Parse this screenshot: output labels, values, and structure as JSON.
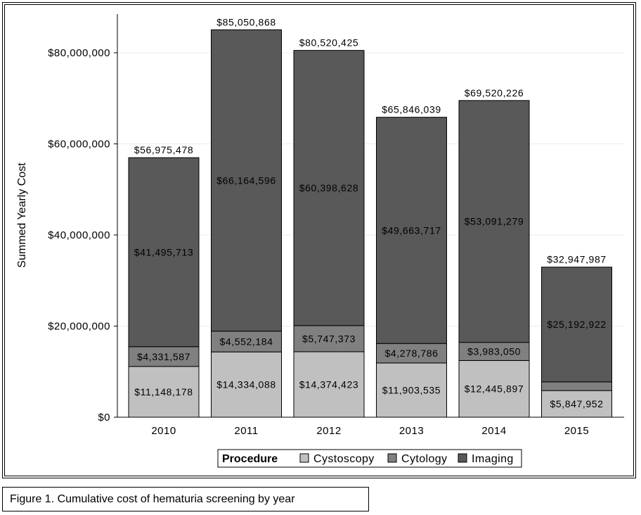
{
  "caption": "Figure 1. Cumulative cost of hematuria screening by year",
  "chart_data": {
    "type": "bar",
    "stacked": true,
    "title": "",
    "xlabel": "",
    "ylabel": "Summed Yearly Cost",
    "ylim": [
      0,
      86000000
    ],
    "yticks": [
      0,
      20000000,
      40000000,
      60000000,
      80000000
    ],
    "ytick_labels": [
      "$0",
      "$20,000,000",
      "$40,000,000",
      "$60,000,000",
      "$80,000,000"
    ],
    "grid": true,
    "categories": [
      "2010",
      "2011",
      "2012",
      "2013",
      "2014",
      "2015"
    ],
    "series": [
      {
        "name": "Cystoscopy",
        "color": "#c0c0c0",
        "values": [
          11148178,
          14334088,
          14374423,
          11903535,
          12445897,
          5847952
        ],
        "labels": [
          "$11,148,178",
          "$14,334,088",
          "$14,374,423",
          "$11,903,535",
          "$12,445,897",
          "$5,847,952"
        ]
      },
      {
        "name": "Cytology",
        "color": "#808080",
        "values": [
          4331587,
          4552184,
          5747373,
          4278786,
          3983050,
          1907113
        ],
        "labels": [
          "$4,331,587",
          "$4,552,184",
          "$5,747,373",
          "$4,278,786",
          "$3,983,050",
          null
        ]
      },
      {
        "name": "Imaging",
        "color": "#595959",
        "values": [
          41495713,
          66164596,
          60398628,
          49663717,
          53091279,
          25192922
        ],
        "labels": [
          "$41,495,713",
          "$66,164,596",
          "$60,398,628",
          "$49,663,717",
          "$53,091,279",
          "$25,192,922"
        ]
      }
    ],
    "totals": [
      56975478,
      85050868,
      80520425,
      65846039,
      69520226,
      32947987
    ],
    "total_labels": [
      "$56,975,478",
      "$85,050,868",
      "$80,520,425",
      "$65,846,039",
      "$69,520,226",
      "$32,947,987"
    ],
    "legend": {
      "title": "Procedure",
      "placement": "bottom-center",
      "entries": [
        "Cystoscopy",
        "Cytology",
        "Imaging"
      ]
    }
  }
}
